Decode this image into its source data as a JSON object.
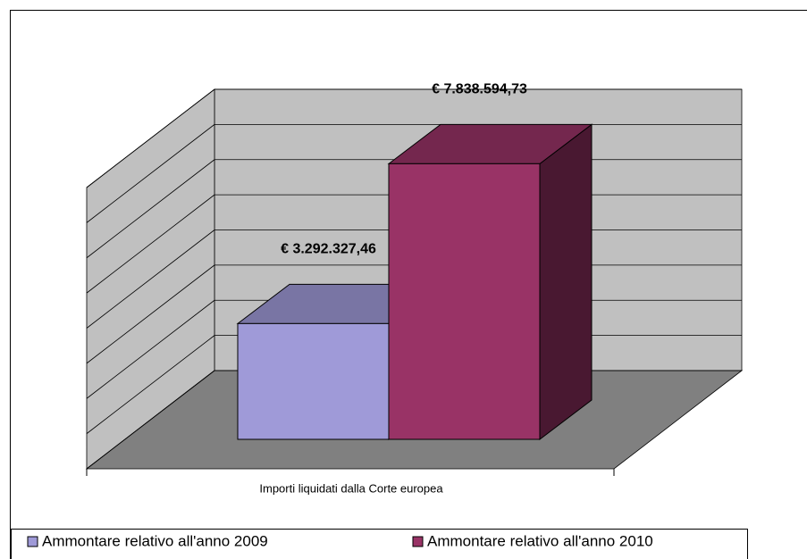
{
  "chart_data": {
    "type": "bar3d",
    "categories": [
      "Importi liquidati dalla Corte europea"
    ],
    "series": [
      {
        "name": "Ammontare relativo all'anno 2009",
        "color": "#9f9ad8",
        "values": [
          3292327.46
        ],
        "value_labels": [
          "€ 3.292.327,46"
        ]
      },
      {
        "name": "Ammontare relativo all'anno 2010",
        "color": "#993366",
        "values": [
          7838594.73
        ],
        "value_labels": [
          "€ 7.838.594,73"
        ]
      }
    ],
    "ylim": [
      0,
      8000000
    ],
    "yticks": [
      0,
      1000000,
      2000000,
      3000000,
      4000000,
      5000000,
      6000000,
      7000000,
      8000000
    ],
    "grid": true,
    "legend": "bottom"
  }
}
